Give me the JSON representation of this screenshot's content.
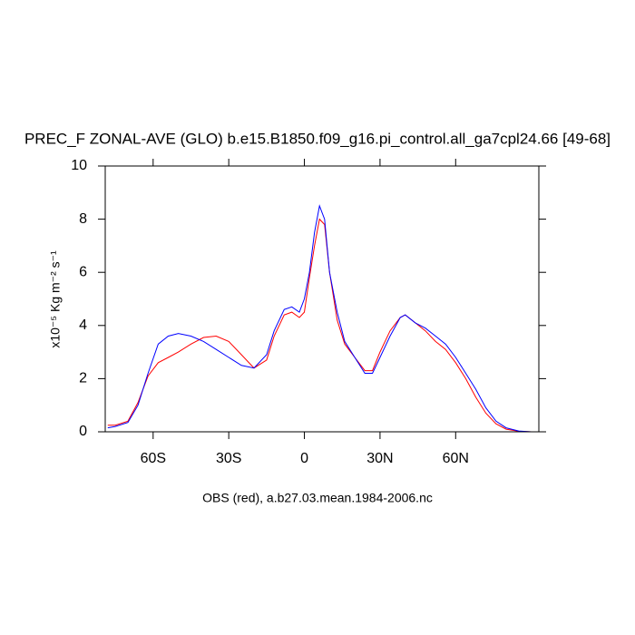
{
  "chart_data": {
    "type": "line",
    "title": "PREC_F ZONAL-AVE (GLO) b.e15.B1850.f09_g16.pi_control.all_ga7cpl24.66 [49-68]",
    "xlabel": "OBS (red), a.b27.03.mean.1984-2006.nc",
    "ylabel": "x10⁻⁵ Kg m⁻² s⁻¹",
    "x": [
      -78,
      -75,
      -70,
      -66,
      -62,
      -58,
      -54,
      -50,
      -45,
      -40,
      -35,
      -30,
      -25,
      -20,
      -15,
      -12,
      -8,
      -5,
      -2,
      0,
      2,
      4,
      6,
      8,
      10,
      13,
      16,
      20,
      24,
      27,
      30,
      34,
      38,
      40,
      44,
      48,
      52,
      56,
      60,
      64,
      68,
      72,
      76,
      80,
      85,
      90
    ],
    "series": [
      {
        "color": "#ff0000",
        "values": [
          0.25,
          0.25,
          0.4,
          1.1,
          2.1,
          2.6,
          2.8,
          3.0,
          3.3,
          3.55,
          3.6,
          3.4,
          2.9,
          2.4,
          2.7,
          3.6,
          4.4,
          4.5,
          4.3,
          4.5,
          5.8,
          7.0,
          8.0,
          7.8,
          6.0,
          4.2,
          3.3,
          2.8,
          2.3,
          2.3,
          3.0,
          3.8,
          4.3,
          4.4,
          4.1,
          3.8,
          3.4,
          3.1,
          2.6,
          2.0,
          1.3,
          0.7,
          0.3,
          0.1,
          0.02,
          0
        ]
      },
      {
        "color": "#0000ff",
        "values": [
          0.15,
          0.2,
          0.35,
          1.0,
          2.2,
          3.3,
          3.6,
          3.7,
          3.6,
          3.4,
          3.1,
          2.8,
          2.5,
          2.4,
          2.9,
          3.8,
          4.6,
          4.7,
          4.5,
          5.0,
          6.0,
          7.5,
          8.5,
          8.0,
          6.0,
          4.5,
          3.4,
          2.8,
          2.2,
          2.2,
          2.8,
          3.6,
          4.3,
          4.4,
          4.1,
          3.9,
          3.6,
          3.3,
          2.8,
          2.2,
          1.6,
          0.9,
          0.4,
          0.15,
          0.03,
          0
        ]
      }
    ],
    "xlim": [
      -79,
      93
    ],
    "xticks": [
      {
        "value": -60,
        "label": "60S"
      },
      {
        "value": -30,
        "label": "30S"
      },
      0,
      {
        "value": 30,
        "label": "30N"
      },
      {
        "value": 60,
        "label": "60N"
      }
    ],
    "ylim": [
      0,
      10
    ],
    "yticks": [
      0,
      2,
      4,
      6,
      8,
      10
    ]
  }
}
